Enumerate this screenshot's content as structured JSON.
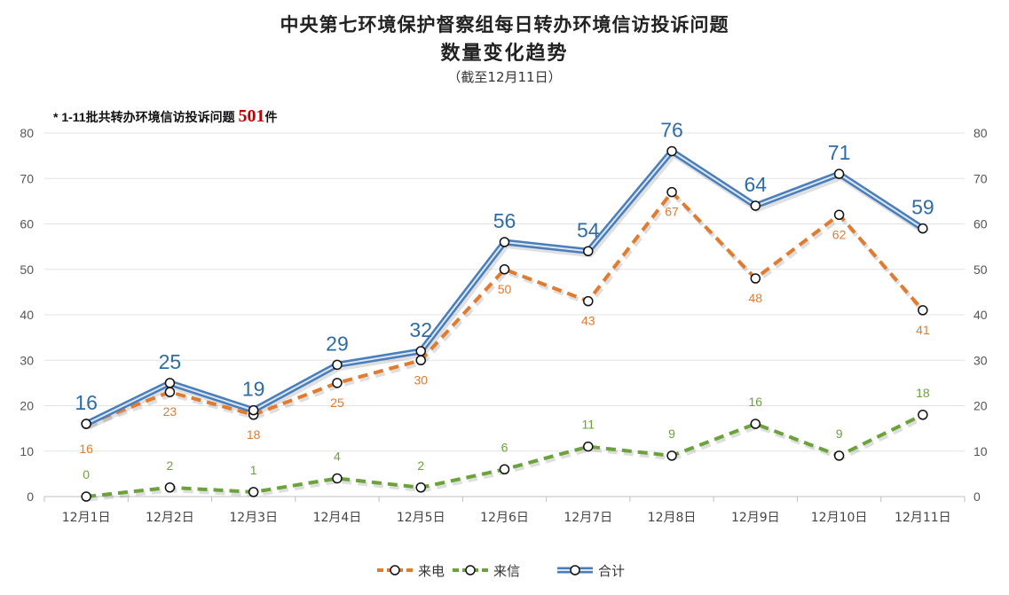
{
  "header": {
    "title_line1": "中央第七环境保护督察组每日转办环境信访投诉问题",
    "title_line2": "数量变化趋势",
    "subtitle": "（截至12月11日）"
  },
  "note": {
    "prefix": "* 1-11批共转办环境信访投诉问题",
    "count": "501",
    "suffix": "件"
  },
  "chart_data": {
    "type": "line",
    "title": "中央第七环境保护督察组每日转办环境信访投诉问题 数量变化趋势",
    "subtitle": "（截至12月11日）",
    "categories": [
      "12月1日",
      "12月2日",
      "12月3日",
      "12月4日",
      "12月5日",
      "12月6日",
      "12月7日",
      "12月8日",
      "12月9日",
      "12月10日",
      "12月11日"
    ],
    "series": [
      {
        "name": "来电",
        "values": [
          16,
          23,
          18,
          25,
          30,
          50,
          43,
          67,
          48,
          62,
          41
        ],
        "color": "#e07b2f",
        "style": "dashed"
      },
      {
        "name": "来信",
        "values": [
          0,
          2,
          1,
          4,
          2,
          6,
          11,
          9,
          16,
          9,
          18
        ],
        "color": "#6aa33a",
        "style": "dashed"
      },
      {
        "name": "合计",
        "values": [
          16,
          25,
          19,
          29,
          32,
          56,
          54,
          76,
          64,
          71,
          59
        ],
        "color": "#4a7ebb",
        "style": "double-solid"
      }
    ],
    "ylim": [
      0,
      80
    ],
    "yticks": [
      0,
      10,
      20,
      30,
      40,
      50,
      60,
      70,
      80
    ],
    "secondary_yticks": [
      0,
      10,
      20,
      30,
      40,
      50,
      60,
      70,
      80
    ],
    "grid": true,
    "legend_position": "bottom-center"
  }
}
